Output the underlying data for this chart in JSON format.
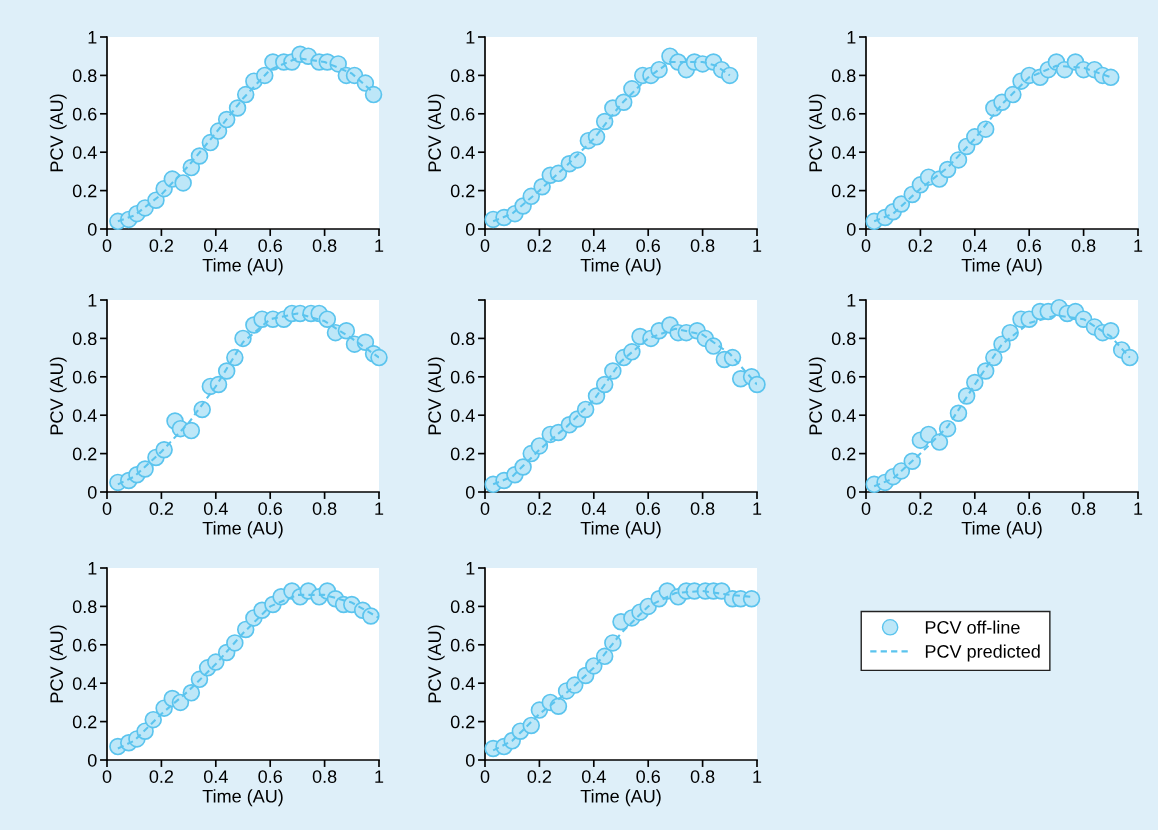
{
  "chart_data": [
    {
      "type": "scatter",
      "xlabel": "Time (AU)",
      "ylabel": "PCV (AU)",
      "xlim": [
        0,
        1
      ],
      "ylim": [
        0,
        1
      ],
      "xticks": [
        0,
        0.2,
        0.4,
        0.6,
        0.8,
        1
      ],
      "yticks": [
        0,
        0.2,
        0.4,
        0.6,
        0.8,
        1
      ],
      "series": [
        {
          "marker": "circle",
          "color": "#5bc4ee",
          "x": [
            0.04,
            0.08,
            0.11,
            0.14,
            0.18,
            0.21,
            0.24,
            0.28,
            0.31,
            0.34,
            0.38,
            0.41,
            0.44,
            0.48,
            0.51,
            0.54,
            0.58,
            0.61,
            0.65,
            0.68,
            0.71,
            0.74,
            0.78,
            0.81,
            0.85,
            0.88,
            0.91,
            0.95,
            0.98
          ],
          "values": [
            0.04,
            0.05,
            0.08,
            0.11,
            0.15,
            0.21,
            0.26,
            0.24,
            0.32,
            0.38,
            0.45,
            0.51,
            0.57,
            0.63,
            0.7,
            0.77,
            0.8,
            0.87,
            0.87,
            0.87,
            0.91,
            0.9,
            0.87,
            0.87,
            0.86,
            0.8,
            0.8,
            0.76,
            0.7
          ]
        },
        {
          "type": "line",
          "line_style": "dashed",
          "color": "#5bc4ee",
          "x": [
            0.04,
            0.1,
            0.2,
            0.3,
            0.4,
            0.5,
            0.6,
            0.7,
            0.8,
            0.9,
            0.98
          ],
          "values": [
            0.04,
            0.07,
            0.18,
            0.33,
            0.5,
            0.68,
            0.83,
            0.89,
            0.87,
            0.81,
            0.71
          ]
        }
      ]
    },
    {
      "type": "scatter",
      "xlabel": "Time (AU)",
      "ylabel": "PCV (AU)",
      "xlim": [
        0,
        1
      ],
      "ylim": [
        0,
        1
      ],
      "xticks": [
        0,
        0.2,
        0.4,
        0.6,
        0.8,
        1
      ],
      "yticks": [
        0,
        0.2,
        0.4,
        0.6,
        0.8,
        1
      ],
      "series": [
        {
          "marker": "circle",
          "color": "#5bc4ee",
          "x": [
            0.03,
            0.07,
            0.11,
            0.14,
            0.17,
            0.21,
            0.24,
            0.27,
            0.31,
            0.34,
            0.38,
            0.41,
            0.44,
            0.47,
            0.51,
            0.54,
            0.58,
            0.61,
            0.64,
            0.68,
            0.71,
            0.74,
            0.77,
            0.8,
            0.84,
            0.87,
            0.9
          ],
          "values": [
            0.05,
            0.06,
            0.08,
            0.12,
            0.17,
            0.22,
            0.28,
            0.29,
            0.34,
            0.36,
            0.46,
            0.48,
            0.56,
            0.63,
            0.66,
            0.73,
            0.8,
            0.8,
            0.83,
            0.9,
            0.87,
            0.83,
            0.87,
            0.86,
            0.87,
            0.83,
            0.8
          ]
        },
        {
          "type": "line",
          "line_style": "dashed",
          "color": "#5bc4ee",
          "x": [
            0.03,
            0.1,
            0.2,
            0.3,
            0.4,
            0.5,
            0.6,
            0.68,
            0.75,
            0.8,
            0.85,
            0.9
          ],
          "values": [
            0.04,
            0.08,
            0.2,
            0.33,
            0.47,
            0.65,
            0.79,
            0.87,
            0.87,
            0.87,
            0.85,
            0.8
          ]
        }
      ]
    },
    {
      "type": "scatter",
      "xlabel": "Time (AU)",
      "ylabel": "PCV (AU)",
      "xlim": [
        0,
        1
      ],
      "ylim": [
        0,
        1
      ],
      "xticks": [
        0,
        0.2,
        0.4,
        0.6,
        0.8,
        1
      ],
      "yticks": [
        0,
        0.2,
        0.4,
        0.6,
        0.8,
        1
      ],
      "series": [
        {
          "marker": "circle",
          "color": "#5bc4ee",
          "x": [
            0.03,
            0.07,
            0.1,
            0.13,
            0.17,
            0.2,
            0.23,
            0.27,
            0.3,
            0.34,
            0.37,
            0.4,
            0.44,
            0.47,
            0.5,
            0.54,
            0.57,
            0.6,
            0.64,
            0.67,
            0.7,
            0.73,
            0.77,
            0.8,
            0.84,
            0.87,
            0.9
          ],
          "values": [
            0.04,
            0.06,
            0.09,
            0.13,
            0.18,
            0.23,
            0.27,
            0.26,
            0.31,
            0.36,
            0.43,
            0.48,
            0.52,
            0.63,
            0.66,
            0.7,
            0.77,
            0.8,
            0.79,
            0.83,
            0.87,
            0.83,
            0.87,
            0.83,
            0.83,
            0.8,
            0.79
          ]
        },
        {
          "type": "line",
          "line_style": "dashed",
          "color": "#5bc4ee",
          "x": [
            0.03,
            0.1,
            0.2,
            0.3,
            0.4,
            0.5,
            0.6,
            0.7,
            0.8,
            0.9
          ],
          "values": [
            0.04,
            0.08,
            0.21,
            0.32,
            0.47,
            0.65,
            0.79,
            0.85,
            0.84,
            0.79
          ]
        }
      ]
    },
    {
      "type": "scatter",
      "xlabel": "Time (AU)",
      "ylabel": "PCV (AU)",
      "xlim": [
        0,
        1
      ],
      "ylim": [
        0,
        1
      ],
      "xticks": [
        0,
        0.2,
        0.4,
        0.6,
        0.8,
        1
      ],
      "yticks": [
        0,
        0.2,
        0.4,
        0.6,
        0.8,
        1
      ],
      "series": [
        {
          "marker": "circle",
          "color": "#5bc4ee",
          "x": [
            0.04,
            0.08,
            0.11,
            0.14,
            0.18,
            0.21,
            0.25,
            0.27,
            0.31,
            0.35,
            0.38,
            0.41,
            0.44,
            0.47,
            0.5,
            0.54,
            0.57,
            0.61,
            0.65,
            0.68,
            0.71,
            0.75,
            0.78,
            0.81,
            0.84,
            0.88,
            0.91,
            0.95,
            0.98,
            1.0
          ],
          "values": [
            0.05,
            0.06,
            0.09,
            0.12,
            0.18,
            0.22,
            0.37,
            0.33,
            0.32,
            0.43,
            0.55,
            0.56,
            0.63,
            0.7,
            0.8,
            0.87,
            0.9,
            0.9,
            0.9,
            0.93,
            0.93,
            0.93,
            0.93,
            0.9,
            0.83,
            0.84,
            0.77,
            0.78,
            0.72,
            0.7
          ]
        },
        {
          "type": "line",
          "line_style": "dashed",
          "color": "#5bc4ee",
          "x": [
            0.04,
            0.1,
            0.2,
            0.3,
            0.4,
            0.5,
            0.6,
            0.7,
            0.8,
            0.9,
            1.0
          ],
          "values": [
            0.04,
            0.08,
            0.21,
            0.36,
            0.55,
            0.78,
            0.9,
            0.93,
            0.89,
            0.8,
            0.7
          ]
        }
      ]
    },
    {
      "type": "scatter",
      "xlabel": "Time (AU)",
      "ylabel": "PCV (AU)",
      "xlim": [
        0,
        1
      ],
      "ylim": [
        0,
        1
      ],
      "xticks": [
        0,
        0.2,
        0.4,
        0.6,
        0.8,
        1
      ],
      "yticks": [
        0,
        0.2,
        0.4,
        0.6,
        0.8,
        {
          "value": 1,
          "label": null
        }
      ],
      "series": [
        {
          "marker": "circle",
          "color": "#5bc4ee",
          "x": [
            0.03,
            0.07,
            0.11,
            0.14,
            0.17,
            0.2,
            0.24,
            0.27,
            0.31,
            0.34,
            0.37,
            0.41,
            0.44,
            0.47,
            0.51,
            0.54,
            0.57,
            0.61,
            0.64,
            0.68,
            0.71,
            0.74,
            0.78,
            0.81,
            0.84,
            0.88,
            0.91,
            0.94,
            0.98,
            1.0
          ],
          "values": [
            0.04,
            0.06,
            0.09,
            0.13,
            0.2,
            0.24,
            0.3,
            0.31,
            0.35,
            0.38,
            0.43,
            0.5,
            0.56,
            0.63,
            0.7,
            0.73,
            0.81,
            0.8,
            0.84,
            0.87,
            0.83,
            0.83,
            0.84,
            0.8,
            0.76,
            0.69,
            0.7,
            0.59,
            0.6,
            0.56
          ]
        },
        {
          "type": "line",
          "line_style": "dashed",
          "color": "#5bc4ee",
          "x": [
            0.03,
            0.1,
            0.2,
            0.3,
            0.4,
            0.5,
            0.6,
            0.7,
            0.8,
            0.9,
            1.0
          ],
          "values": [
            0.04,
            0.08,
            0.22,
            0.34,
            0.48,
            0.68,
            0.8,
            0.85,
            0.82,
            0.72,
            0.56
          ]
        }
      ]
    },
    {
      "type": "scatter",
      "xlabel": "Time (AU)",
      "ylabel": "PCV (AU)",
      "xlim": [
        0,
        1
      ],
      "ylim": [
        0,
        1
      ],
      "xticks": [
        0,
        0.2,
        0.4,
        0.6,
        0.8,
        1
      ],
      "yticks": [
        0,
        0.2,
        0.4,
        0.6,
        0.8,
        1
      ],
      "series": [
        {
          "marker": "circle",
          "color": "#5bc4ee",
          "x": [
            0.03,
            0.07,
            0.1,
            0.13,
            0.17,
            0.2,
            0.23,
            0.27,
            0.3,
            0.34,
            0.37,
            0.4,
            0.44,
            0.47,
            0.5,
            0.53,
            0.57,
            0.6,
            0.64,
            0.67,
            0.71,
            0.74,
            0.77,
            0.8,
            0.84,
            0.87,
            0.9,
            0.94,
            0.97
          ],
          "values": [
            0.04,
            0.05,
            0.08,
            0.11,
            0.16,
            0.27,
            0.3,
            0.26,
            0.33,
            0.41,
            0.5,
            0.57,
            0.63,
            0.7,
            0.77,
            0.83,
            0.9,
            0.9,
            0.94,
            0.94,
            0.96,
            0.93,
            0.94,
            0.9,
            0.86,
            0.83,
            0.84,
            0.74,
            0.7
          ]
        },
        {
          "type": "line",
          "line_style": "dashed",
          "color": "#5bc4ee",
          "x": [
            0.03,
            0.1,
            0.2,
            0.3,
            0.4,
            0.5,
            0.6,
            0.7,
            0.8,
            0.9,
            0.97
          ],
          "values": [
            0.03,
            0.07,
            0.2,
            0.34,
            0.56,
            0.77,
            0.88,
            0.92,
            0.9,
            0.81,
            0.7
          ]
        }
      ]
    },
    {
      "type": "scatter",
      "xlabel": "Time (AU)",
      "ylabel": "PCV (AU)",
      "xlim": [
        0,
        1
      ],
      "ylim": [
        0,
        1
      ],
      "xticks": [
        0,
        0.2,
        0.4,
        0.6,
        0.8,
        1
      ],
      "yticks": [
        0,
        0.2,
        0.4,
        0.6,
        0.8,
        1
      ],
      "series": [
        {
          "marker": "circle",
          "color": "#5bc4ee",
          "x": [
            0.04,
            0.08,
            0.11,
            0.14,
            0.17,
            0.21,
            0.24,
            0.27,
            0.31,
            0.34,
            0.37,
            0.4,
            0.44,
            0.47,
            0.51,
            0.54,
            0.57,
            0.61,
            0.64,
            0.68,
            0.71,
            0.74,
            0.78,
            0.81,
            0.84,
            0.87,
            0.9,
            0.94,
            0.97
          ],
          "values": [
            0.07,
            0.09,
            0.11,
            0.15,
            0.21,
            0.27,
            0.32,
            0.3,
            0.35,
            0.42,
            0.48,
            0.51,
            0.56,
            0.61,
            0.68,
            0.74,
            0.78,
            0.81,
            0.85,
            0.88,
            0.85,
            0.88,
            0.85,
            0.88,
            0.84,
            0.81,
            0.81,
            0.78,
            0.75
          ]
        },
        {
          "type": "line",
          "line_style": "dashed",
          "color": "#5bc4ee",
          "x": [
            0.04,
            0.1,
            0.2,
            0.3,
            0.4,
            0.5,
            0.6,
            0.7,
            0.8,
            0.9,
            1.0
          ],
          "values": [
            0.06,
            0.1,
            0.24,
            0.36,
            0.5,
            0.66,
            0.8,
            0.86,
            0.86,
            0.82,
            0.74
          ]
        }
      ]
    },
    {
      "type": "scatter",
      "xlabel": "Time (AU)",
      "ylabel": "PCV (AU)",
      "xlim": [
        0,
        1
      ],
      "ylim": [
        0,
        1
      ],
      "xticks": [
        0,
        0.2,
        0.4,
        0.6,
        0.8,
        1
      ],
      "yticks": [
        0,
        0.2,
        0.4,
        0.6,
        0.8,
        1
      ],
      "legend": "right",
      "series": [
        {
          "name": "PCV off-line",
          "marker": "circle",
          "color": "#5bc4ee",
          "x": [
            0.03,
            0.07,
            0.1,
            0.13,
            0.17,
            0.2,
            0.24,
            0.27,
            0.3,
            0.33,
            0.37,
            0.4,
            0.44,
            0.47,
            0.5,
            0.54,
            0.57,
            0.6,
            0.64,
            0.67,
            0.71,
            0.74,
            0.77,
            0.81,
            0.84,
            0.87,
            0.91,
            0.94,
            0.98
          ],
          "values": [
            0.06,
            0.07,
            0.1,
            0.15,
            0.18,
            0.26,
            0.3,
            0.28,
            0.36,
            0.39,
            0.44,
            0.49,
            0.54,
            0.61,
            0.72,
            0.74,
            0.77,
            0.8,
            0.84,
            0.88,
            0.85,
            0.88,
            0.88,
            0.88,
            0.88,
            0.88,
            0.84,
            0.84,
            0.84
          ]
        },
        {
          "name": "PCV predicted",
          "type": "line",
          "line_style": "dashed",
          "color": "#5bc4ee",
          "x": [
            0.03,
            0.1,
            0.2,
            0.3,
            0.4,
            0.5,
            0.6,
            0.7,
            0.8,
            0.9,
            0.98
          ],
          "values": [
            0.05,
            0.1,
            0.24,
            0.35,
            0.48,
            0.66,
            0.8,
            0.87,
            0.88,
            0.86,
            0.85
          ]
        }
      ]
    }
  ]
}
